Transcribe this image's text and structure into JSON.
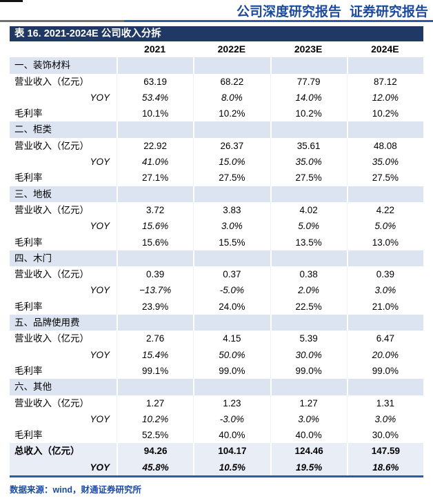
{
  "report_header": {
    "left": "公司深度研究报告",
    "right": "证券研究报告"
  },
  "table": {
    "title": "表 16. 2021-2024E 公司收入分拆",
    "columns": [
      "2021",
      "2022E",
      "2023E",
      "2024E"
    ],
    "row_labels": {
      "revenue": "营业收入（亿元）",
      "yoy": "YOY",
      "margin": "毛利率"
    },
    "sections": [
      {
        "name": "一、装饰材料",
        "revenue": [
          "63.19",
          "68.22",
          "77.79",
          "87.12"
        ],
        "yoy": [
          "53.4%",
          "8.0%",
          "14.0%",
          "12.0%"
        ],
        "margin": [
          "10.1%",
          "10.2%",
          "10.2%",
          "10.2%"
        ]
      },
      {
        "name": "二、柜类",
        "revenue": [
          "22.92",
          "26.37",
          "35.61",
          "48.08"
        ],
        "yoy": [
          "41.0%",
          "15.0%",
          "35.0%",
          "35.0%"
        ],
        "margin": [
          "27.1%",
          "27.5%",
          "27.5%",
          "27.5%"
        ]
      },
      {
        "name": "三、地板",
        "revenue": [
          "3.72",
          "3.83",
          "4.02",
          "4.22"
        ],
        "yoy": [
          "15.6%",
          "3.0%",
          "5.0%",
          "5.0%"
        ],
        "margin": [
          "15.6%",
          "15.5%",
          "13.5%",
          "13.0%"
        ]
      },
      {
        "name": "四、木门",
        "revenue": [
          "0.39",
          "0.37",
          "0.38",
          "0.39"
        ],
        "yoy": [
          "−13.7%",
          "-5.0%",
          "2.0%",
          "3.0%"
        ],
        "margin": [
          "23.9%",
          "24.0%",
          "22.5%",
          "21.0%"
        ]
      },
      {
        "name": "五、品牌使用费",
        "revenue": [
          "2.76",
          "4.15",
          "5.39",
          "6.47"
        ],
        "yoy": [
          "15.4%",
          "50.0%",
          "30.0%",
          "20.0%"
        ],
        "margin": [
          "99.1%",
          "99.0%",
          "99.0%",
          "99.0%"
        ]
      },
      {
        "name": "六、其他",
        "revenue": [
          "1.27",
          "1.23",
          "1.27",
          "1.31"
        ],
        "yoy": [
          "10.2%",
          "-3.0%",
          "3.0%",
          "3.0%"
        ],
        "margin": [
          "52.5%",
          "40.0%",
          "40.0%",
          "30.0%"
        ]
      }
    ],
    "summary": {
      "total_label": "总收入（亿元）",
      "total": [
        "94.26",
        "104.17",
        "124.46",
        "147.59"
      ],
      "yoy_label": "YOY",
      "yoy": [
        "45.8%",
        "10.5%",
        "19.5%",
        "18.6%"
      ]
    }
  },
  "footer": {
    "source": "数据来源：wind，财通证券研究所"
  },
  "colors": {
    "header_blue": "#1b4a9e",
    "title_bar_navy": "#1f3864",
    "section_bg": "#dce4f2",
    "summary_bg": "#e9edf6",
    "rule_blue": "#2b5aa7",
    "rule_gray": "#6f6f6f"
  }
}
